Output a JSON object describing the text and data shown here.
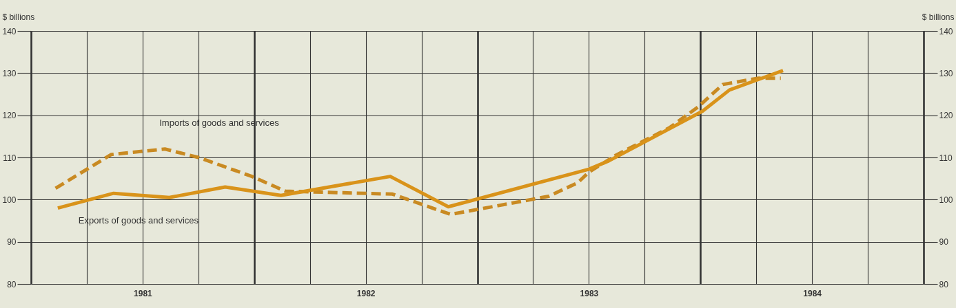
{
  "chart_data": {
    "type": "line",
    "ylabel": "$ billions",
    "y2label": "$ billions",
    "xlim": [
      1981,
      1985
    ],
    "xticks": [
      {
        "value": 1981,
        "label": null
      },
      {
        "value": 1981.25,
        "label": null
      },
      {
        "value": 1981.5,
        "label": "1981"
      },
      {
        "value": 1981.75,
        "label": null
      },
      {
        "value": 1982,
        "label": null
      },
      {
        "value": 1982.25,
        "label": null
      },
      {
        "value": 1982.5,
        "label": "1982"
      },
      {
        "value": 1982.75,
        "label": null
      },
      {
        "value": 1983,
        "label": null
      },
      {
        "value": 1983.25,
        "label": null
      },
      {
        "value": 1983.5,
        "label": "1983"
      },
      {
        "value": 1983.75,
        "label": null
      },
      {
        "value": 1984,
        "label": null
      },
      {
        "value": 1984.25,
        "label": null
      },
      {
        "value": 1984.5,
        "label": "1984"
      },
      {
        "value": 1984.75,
        "label": null
      },
      {
        "value": 1985,
        "label": null
      }
    ],
    "ylim": [
      80,
      140
    ],
    "yticks": [
      80,
      90,
      100,
      110,
      120,
      130,
      140
    ],
    "y2lim": [
      80,
      140
    ],
    "y2ticks": [
      80,
      90,
      100,
      110,
      120,
      130,
      140
    ],
    "grid": true,
    "series": [
      {
        "name": "Imports of goods and services",
        "color": "#c98a22",
        "line_style": "dashed",
        "x": [
          1981.11,
          1981.36,
          1981.6,
          1981.75,
          1981.99,
          1982.14,
          1982.62,
          1982.88,
          1983.21,
          1983.32,
          1983.45,
          1983.5,
          1983.62,
          1983.86,
          1983.99,
          1984.1,
          1984.26,
          1984.36
        ],
        "values": [
          102.7,
          110.7,
          112,
          110,
          105.5,
          102,
          101.3,
          96.5,
          99.7,
          100.8,
          104,
          106.5,
          110.5,
          117,
          122,
          127.3,
          128.8,
          128.8
        ]
      },
      {
        "name": "Exports of goods and services",
        "color": "#d9931a",
        "line_style": "solid",
        "x": [
          1981.12,
          1981.37,
          1981.62,
          1981.87,
          1982.12,
          1982.61,
          1982.87,
          1983.5,
          1983.59,
          1984.01,
          1984.13,
          1984.25,
          1984.37
        ],
        "values": [
          98,
          101.5,
          100.5,
          103,
          101,
          105.5,
          98.3,
          107.2,
          109.2,
          121,
          126,
          128.3,
          130.6
        ]
      }
    ]
  }
}
